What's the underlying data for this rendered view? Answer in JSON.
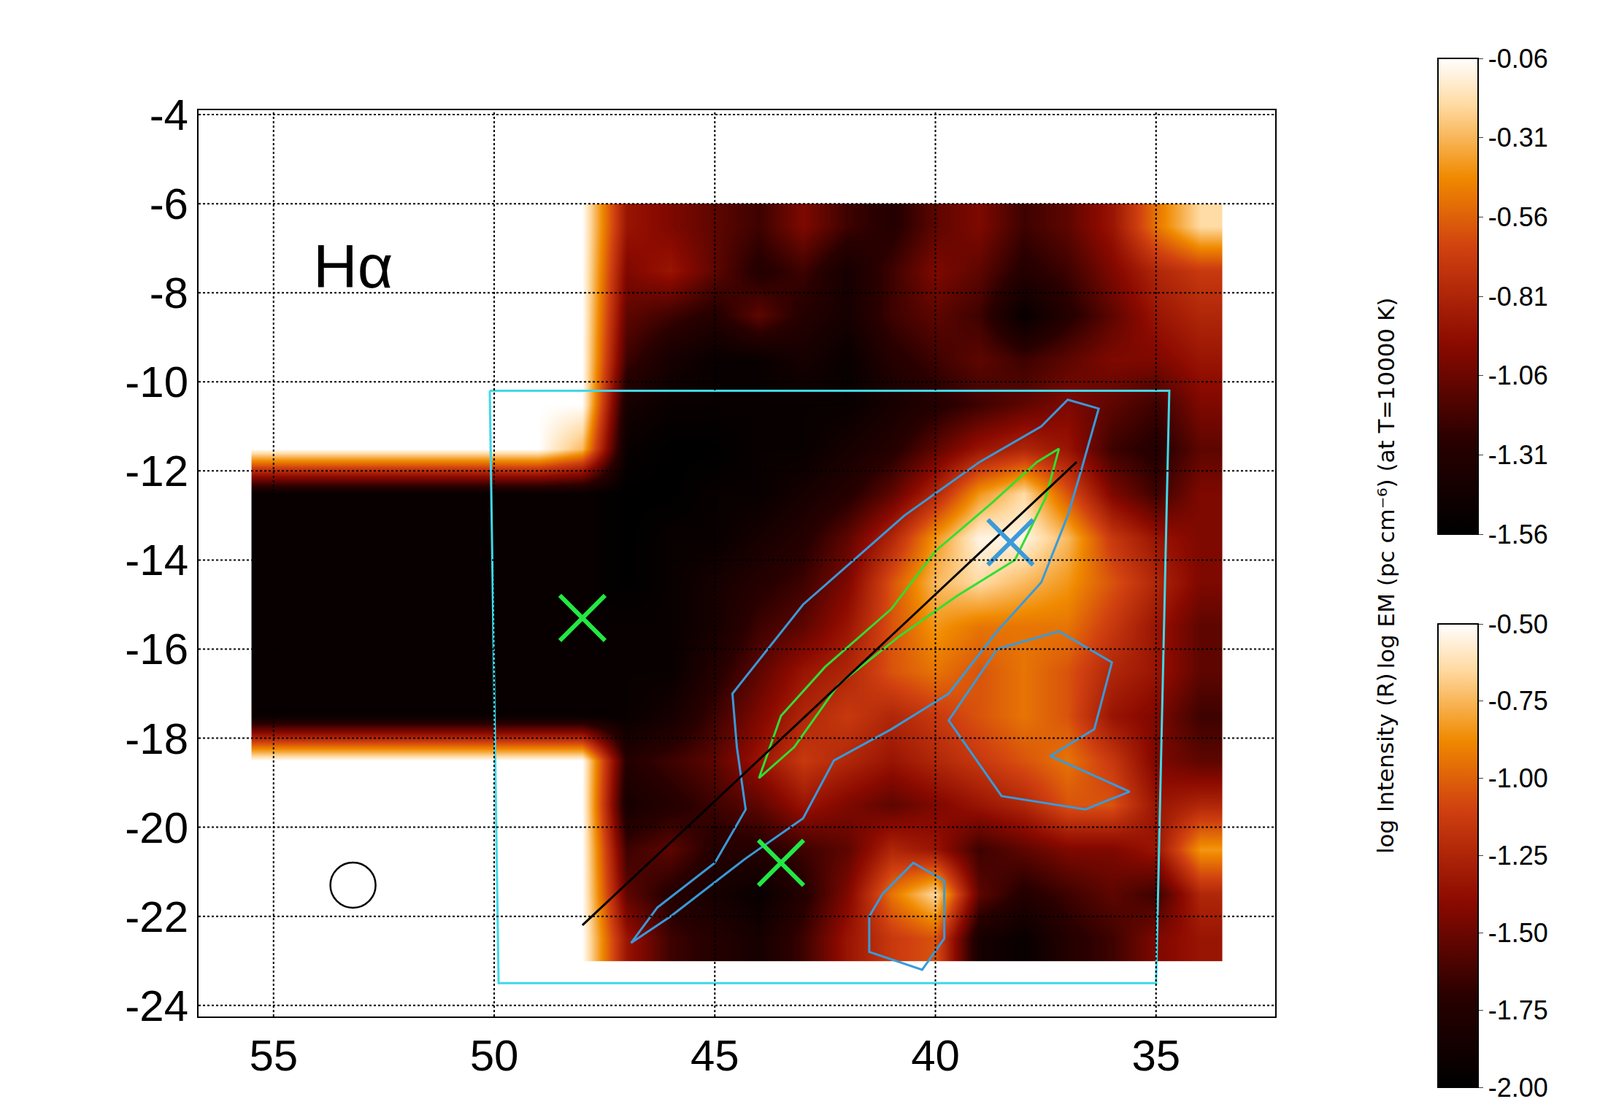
{
  "chart_data": {
    "type": "heatmap",
    "xlim": [
      56.7,
      32.3
    ],
    "ylim": [
      -24.25,
      -3.9
    ],
    "xticks": [
      55,
      50,
      45,
      40,
      35
    ],
    "yticks": [
      -4,
      -6,
      -8,
      -10,
      -12,
      -14,
      -16,
      -18,
      -20,
      -22,
      -24
    ],
    "grid": true,
    "annotations": [
      {
        "text": "Hα",
        "x": 53.2,
        "y": -7.4
      }
    ],
    "heatmap": {
      "x": [
        55,
        54,
        53,
        52,
        51,
        50,
        49,
        48,
        47,
        46,
        45,
        44,
        43,
        42,
        41,
        40,
        39,
        38,
        37,
        36,
        35,
        34
      ],
      "y": [
        -6.5,
        -7.5,
        -8.5,
        -9.5,
        -10.5,
        -11.5,
        -12.5,
        -13.5,
        -14.5,
        -15.5,
        -16.5,
        -17.5,
        -18.5,
        -19.5,
        -20.5,
        -21.5,
        -22.5
      ],
      "z": [
        [
          -0.06,
          -0.06,
          -0.06,
          -0.06,
          -0.06,
          -0.06,
          -0.06,
          -0.06,
          -0.9,
          -1.0,
          -1.1,
          -1.2,
          -1.0,
          -1.2,
          -1.3,
          -1.1,
          -1.0,
          -1.2,
          -1.1,
          -0.9,
          -0.5,
          -0.2
        ],
        [
          -0.06,
          -0.06,
          -0.06,
          -0.06,
          -0.06,
          -0.06,
          -0.06,
          -0.06,
          -1.0,
          -0.9,
          -1.1,
          -1.3,
          -1.2,
          -1.4,
          -1.2,
          -1.0,
          -1.1,
          -1.3,
          -1.2,
          -1.0,
          -0.8,
          -0.7
        ],
        [
          -0.06,
          -0.06,
          -0.06,
          -0.06,
          -0.06,
          -0.06,
          -0.06,
          -0.06,
          -1.1,
          -1.2,
          -1.3,
          -1.1,
          -1.3,
          -1.4,
          -1.2,
          -1.1,
          -1.2,
          -1.5,
          -1.3,
          -1.1,
          -0.9,
          -0.8
        ],
        [
          -0.06,
          -0.06,
          -0.06,
          -0.06,
          -0.06,
          -0.06,
          -0.06,
          -0.06,
          -1.2,
          -1.4,
          -1.5,
          -1.5,
          -1.4,
          -1.5,
          -1.3,
          -1.2,
          -1.1,
          -1.2,
          -1.1,
          -1.0,
          -1.0,
          -0.9
        ],
        [
          -0.06,
          -0.06,
          -0.06,
          -0.06,
          -0.06,
          -0.06,
          -0.06,
          -0.06,
          -1.4,
          -1.5,
          -1.5,
          -1.5,
          -1.5,
          -1.5,
          -1.4,
          -1.3,
          -1.2,
          -1.1,
          -1.0,
          -1.1,
          -1.2,
          -1.0
        ],
        [
          -0.06,
          -0.06,
          -0.06,
          -0.06,
          -0.06,
          -0.06,
          -0.06,
          -0.3,
          -1.5,
          -1.56,
          -1.56,
          -1.5,
          -1.5,
          -1.4,
          -1.3,
          -1.1,
          -0.9,
          -0.8,
          -0.9,
          -1.2,
          -1.3,
          -1.1
        ],
        [
          -1.5,
          -1.5,
          -1.5,
          -1.5,
          -1.5,
          -1.5,
          -1.5,
          -1.5,
          -1.56,
          -1.56,
          -1.5,
          -1.5,
          -1.4,
          -1.3,
          -1.1,
          -0.8,
          -0.4,
          -0.2,
          -0.6,
          -1.0,
          -1.2,
          -1.0
        ],
        [
          -1.5,
          -1.5,
          -1.5,
          -1.5,
          -1.5,
          -1.5,
          -1.5,
          -1.5,
          -1.56,
          -1.5,
          -1.5,
          -1.4,
          -1.3,
          -1.1,
          -0.8,
          -0.4,
          -0.1,
          -0.1,
          -0.3,
          -0.7,
          -0.9,
          -1.0
        ],
        [
          -1.5,
          -1.5,
          -1.5,
          -1.5,
          -1.5,
          -1.5,
          -1.5,
          -1.5,
          -1.56,
          -1.5,
          -1.4,
          -1.3,
          -1.2,
          -1.0,
          -0.6,
          -0.3,
          -0.2,
          -0.3,
          -0.4,
          -0.6,
          -0.8,
          -1.0
        ],
        [
          -1.5,
          -1.5,
          -1.5,
          -1.5,
          -1.5,
          -1.5,
          -1.5,
          -1.5,
          -1.5,
          -1.5,
          -1.4,
          -1.2,
          -1.1,
          -0.9,
          -0.6,
          -0.4,
          -0.5,
          -0.5,
          -0.5,
          -0.7,
          -0.9,
          -1.1
        ],
        [
          -1.5,
          -1.5,
          -1.5,
          -1.5,
          -1.5,
          -1.5,
          -1.5,
          -1.5,
          -1.5,
          -1.5,
          -1.3,
          -1.1,
          -0.9,
          -0.8,
          -0.6,
          -0.5,
          -0.6,
          -0.5,
          -0.6,
          -0.8,
          -0.9,
          -1.1
        ],
        [
          -1.5,
          -1.5,
          -1.5,
          -1.5,
          -1.5,
          -1.5,
          -1.5,
          -1.5,
          -1.5,
          -1.4,
          -1.2,
          -1.0,
          -0.8,
          -0.7,
          -0.8,
          -0.7,
          -0.6,
          -0.5,
          -0.6,
          -0.9,
          -1.0,
          -1.2
        ],
        [
          -0.06,
          -0.06,
          -0.06,
          -0.06,
          -0.06,
          -0.06,
          -0.06,
          -0.06,
          -1.3,
          -1.2,
          -1.1,
          -0.9,
          -0.7,
          -0.8,
          -0.9,
          -0.8,
          -0.7,
          -0.6,
          -0.5,
          -0.7,
          -1.0,
          -1.1
        ],
        [
          -0.06,
          -0.06,
          -0.06,
          -0.06,
          -0.06,
          -0.06,
          -0.06,
          -0.06,
          -1.4,
          -1.3,
          -1.2,
          -1.1,
          -0.9,
          -1.0,
          -1.1,
          -1.0,
          -0.9,
          -0.8,
          -0.6,
          -0.6,
          -0.9,
          -0.8
        ],
        [
          -0.06,
          -0.06,
          -0.06,
          -0.06,
          -0.06,
          -0.06,
          -0.06,
          -0.06,
          -1.2,
          -1.1,
          -1.3,
          -1.3,
          -1.2,
          -1.1,
          -0.8,
          -0.9,
          -1.2,
          -1.1,
          -1.0,
          -1.0,
          -0.9,
          -0.4
        ],
        [
          -0.06,
          -0.06,
          -0.06,
          -0.06,
          -0.06,
          -0.06,
          -0.06,
          -0.06,
          -1.1,
          -1.3,
          -1.4,
          -1.5,
          -1.3,
          -1.0,
          -0.5,
          -0.2,
          -1.1,
          -1.3,
          -1.2,
          -1.1,
          -1.2,
          -0.8
        ],
        [
          -0.06,
          -0.06,
          -0.06,
          -0.06,
          -0.06,
          -0.06,
          -0.06,
          -0.06,
          -0.9,
          -1.2,
          -1.3,
          -1.4,
          -1.2,
          -0.9,
          -0.7,
          -0.6,
          -1.4,
          -1.5,
          -1.3,
          -1.2,
          -1.0,
          -0.9
        ]
      ]
    },
    "colorbars": [
      {
        "title": "log EM (pc cm⁻⁶) (at T=10000 K)",
        "range": [
          -1.56,
          -0.06
        ],
        "ticks": [
          -0.06,
          -0.31,
          -0.56,
          -0.81,
          -1.06,
          -1.31,
          -1.56
        ]
      },
      {
        "title": "log Intensity (R)",
        "range": [
          -2.0,
          -0.5
        ],
        "ticks": [
          {
            "value": -0.5,
            "label": "-0.50"
          },
          -0.75,
          {
            "value": -1.0,
            "label": "-1.00"
          },
          -1.25,
          {
            "value": -1.5,
            "label": "-1.50"
          },
          -1.75,
          {
            "value": -2.0,
            "label": "-2.00"
          }
        ]
      }
    ],
    "contours": [
      {
        "color": "#3a9ad9",
        "points": [
          [
            46.9,
            -22.6
          ],
          [
            46.3,
            -21.8
          ],
          [
            45.0,
            -20.8
          ],
          [
            44.3,
            -19.6
          ],
          [
            44.5,
            -18.2
          ],
          [
            44.6,
            -17.0
          ],
          [
            43.0,
            -15.0
          ],
          [
            40.7,
            -13.0
          ],
          [
            39.0,
            -11.8
          ],
          [
            37.6,
            -11.0
          ],
          [
            37.0,
            -10.4
          ],
          [
            36.3,
            -10.6
          ],
          [
            36.7,
            -12.0
          ],
          [
            37.0,
            -13.0
          ],
          [
            37.6,
            -14.5
          ],
          [
            38.6,
            -15.6
          ],
          [
            39.7,
            -17.0
          ],
          [
            41.0,
            -17.8
          ],
          [
            42.3,
            -18.5
          ],
          [
            43.0,
            -19.8
          ],
          [
            44.3,
            -20.7
          ],
          [
            46.0,
            -22.0
          ],
          [
            46.9,
            -22.6
          ]
        ]
      },
      {
        "color": "#3a9ad9",
        "points": [
          [
            38.6,
            -16.0
          ],
          [
            37.2,
            -15.6
          ],
          [
            36.0,
            -16.3
          ],
          [
            36.4,
            -17.8
          ],
          [
            37.4,
            -18.4
          ],
          [
            35.6,
            -19.2
          ],
          [
            36.6,
            -19.6
          ],
          [
            38.5,
            -19.3
          ],
          [
            39.7,
            -17.6
          ],
          [
            38.6,
            -16.0
          ]
        ]
      },
      {
        "color": "#3a9ad9",
        "points": [
          [
            41.2,
            -21.5
          ],
          [
            40.5,
            -20.8
          ],
          [
            39.8,
            -21.2
          ],
          [
            39.8,
            -22.5
          ],
          [
            40.3,
            -23.2
          ],
          [
            41.5,
            -22.8
          ],
          [
            41.5,
            -22.0
          ],
          [
            41.2,
            -21.5
          ]
        ]
      },
      {
        "color": "#33dd33",
        "points": [
          [
            44.0,
            -18.9
          ],
          [
            43.5,
            -17.5
          ],
          [
            42.5,
            -16.4
          ],
          [
            41.0,
            -15.1
          ],
          [
            40.0,
            -13.8
          ],
          [
            38.7,
            -12.7
          ],
          [
            37.7,
            -11.8
          ],
          [
            37.2,
            -11.5
          ],
          [
            37.5,
            -12.6
          ],
          [
            38.2,
            -14.0
          ],
          [
            39.5,
            -14.8
          ],
          [
            40.8,
            -15.7
          ],
          [
            42.2,
            -16.8
          ],
          [
            43.2,
            -18.2
          ],
          [
            44.0,
            -18.9
          ]
        ]
      }
    ],
    "line": {
      "color": "#000000",
      "x": [
        48.0,
        36.8
      ],
      "y": [
        -22.2,
        -11.8
      ]
    },
    "box": {
      "color": "#3fd8e8",
      "x": [
        50.1,
        34.7,
        35.0,
        49.9,
        50.1
      ],
      "y": [
        -10.2,
        -10.2,
        -23.5,
        -23.5,
        -10.2
      ]
    },
    "markers": [
      {
        "color": "#22e844",
        "marker": "x",
        "x": [
          48.0,
          43.5
        ],
        "y": [
          -15.3,
          -20.8
        ]
      },
      {
        "color": "#3a9ad9",
        "marker": "x",
        "x": [
          38.3
        ],
        "y": [
          -13.6
        ]
      },
      {
        "color": "#000000",
        "marker": "circle-open",
        "x": [
          53.2
        ],
        "y": [
          -21.3
        ]
      }
    ]
  }
}
